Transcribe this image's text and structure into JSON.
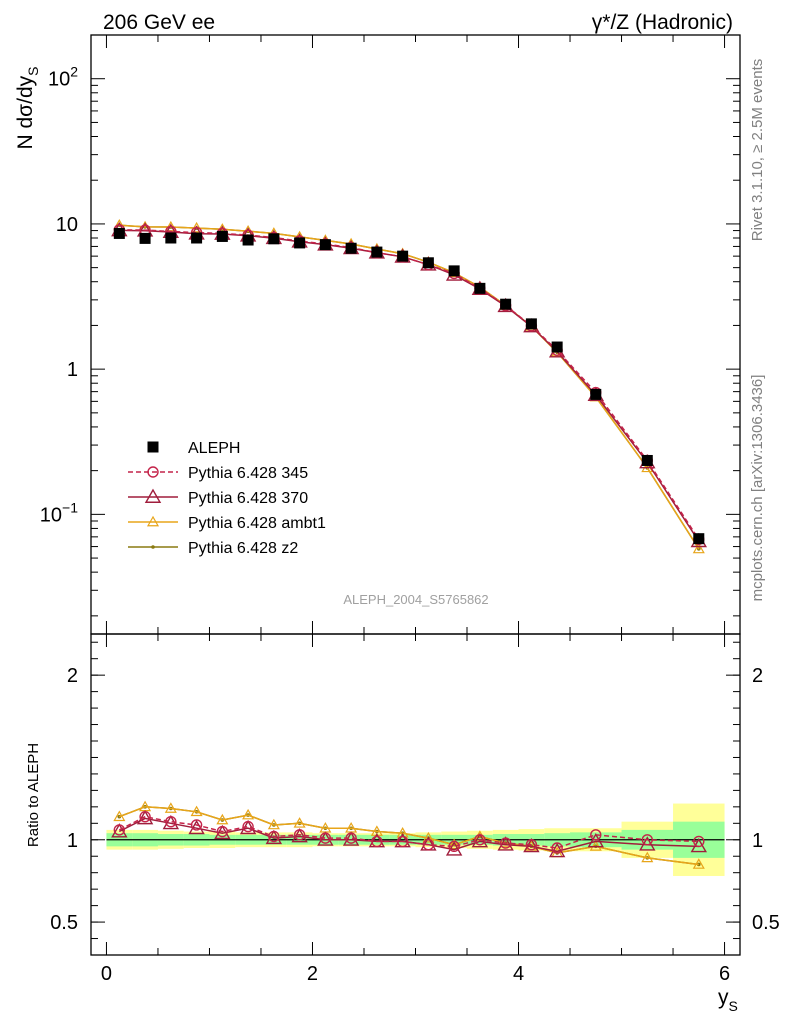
{
  "chart_data": {
    "type": "line",
    "header_left": "206 GeV ee",
    "header_right": "γ*/Z (Hadronic)",
    "ylabel_main": "N dσ/dy",
    "ylabel_main_sub": "S",
    "ylabel_ratio": "Ratio to ALEPH",
    "xlabel": "y",
    "xlabel_sub": "S",
    "analysis_id": "ALEPH_2004_S5765862",
    "side_text_top": "Rivet 3.1.10, ≥ 2.5M events",
    "side_text_bottom": "mcplots.cern.ch [arXiv:1306.3436]",
    "xlim": [
      -0.15,
      6.15
    ],
    "ylim_main": [
      0.015,
      200
    ],
    "ylim_ratio": [
      0.3,
      2.25
    ],
    "log_y_main": true,
    "x_ticks": [
      0,
      2,
      4,
      6
    ],
    "y_ticks_main": [
      {
        "value": 100,
        "base": "10",
        "exp": "2"
      },
      {
        "value": 10,
        "base": "10",
        "exp": ""
      },
      {
        "value": 1,
        "base": "1",
        "exp": ""
      },
      {
        "value": 0.1,
        "base": "10",
        "exp": "−1"
      }
    ],
    "y_ticks_ratio": [
      {
        "value": 2,
        "label": "2"
      },
      {
        "value": 1,
        "label": "1"
      },
      {
        "value": 0.5,
        "label": "0.5"
      }
    ],
    "legend_position": "lower-left",
    "x": [
      0.125,
      0.375,
      0.625,
      0.875,
      1.125,
      1.375,
      1.625,
      1.875,
      2.125,
      2.375,
      2.625,
      2.875,
      3.125,
      3.375,
      3.625,
      3.875,
      4.125,
      4.375,
      4.75,
      5.25,
      5.75
    ],
    "data": {
      "name": "ALEPH",
      "color": "#000000",
      "values": [
        8.6,
        7.95,
        8.0,
        8.0,
        8.2,
        7.75,
        7.9,
        7.4,
        7.2,
        6.8,
        6.4,
        6.0,
        5.4,
        4.75,
        3.6,
        2.8,
        2.05,
        1.42,
        0.67,
        0.235,
        0.068
      ],
      "bins": [
        {
          "lo": 0.0,
          "hi": 0.25,
          "stat": 0.04,
          "tot": 0.06
        },
        {
          "lo": 0.25,
          "hi": 0.5,
          "stat": 0.04,
          "tot": 0.06
        },
        {
          "lo": 0.5,
          "hi": 0.75,
          "stat": 0.035,
          "tot": 0.055
        },
        {
          "lo": 0.75,
          "hi": 1.0,
          "stat": 0.035,
          "tot": 0.05
        },
        {
          "lo": 1.0,
          "hi": 1.25,
          "stat": 0.03,
          "tot": 0.05
        },
        {
          "lo": 1.25,
          "hi": 1.5,
          "stat": 0.03,
          "tot": 0.045
        },
        {
          "lo": 1.5,
          "hi": 1.75,
          "stat": 0.03,
          "tot": 0.045
        },
        {
          "lo": 1.75,
          "hi": 2.0,
          "stat": 0.03,
          "tot": 0.045
        },
        {
          "lo": 2.0,
          "hi": 2.25,
          "stat": 0.03,
          "tot": 0.04
        },
        {
          "lo": 2.25,
          "hi": 2.5,
          "stat": 0.03,
          "tot": 0.04
        },
        {
          "lo": 2.5,
          "hi": 2.75,
          "stat": 0.03,
          "tot": 0.04
        },
        {
          "lo": 2.75,
          "hi": 3.0,
          "stat": 0.03,
          "tot": 0.04
        },
        {
          "lo": 3.0,
          "hi": 3.25,
          "stat": 0.03,
          "tot": 0.045
        },
        {
          "lo": 3.25,
          "hi": 3.5,
          "stat": 0.03,
          "tot": 0.05
        },
        {
          "lo": 3.5,
          "hi": 3.75,
          "stat": 0.03,
          "tot": 0.055
        },
        {
          "lo": 3.75,
          "hi": 4.0,
          "stat": 0.035,
          "tot": 0.06
        },
        {
          "lo": 4.0,
          "hi": 4.25,
          "stat": 0.035,
          "tot": 0.065
        },
        {
          "lo": 4.25,
          "hi": 4.5,
          "stat": 0.04,
          "tot": 0.07
        },
        {
          "lo": 4.5,
          "hi": 5.0,
          "stat": 0.045,
          "tot": 0.07
        },
        {
          "lo": 5.0,
          "hi": 5.5,
          "stat": 0.06,
          "tot": 0.11
        },
        {
          "lo": 5.5,
          "hi": 6.0,
          "stat": 0.11,
          "tot": 0.22
        }
      ]
    },
    "series": [
      {
        "name": "Pythia 6.428 345",
        "color": "#c4244a",
        "marker": "circle",
        "dashed": true,
        "ratio": [
          1.06,
          1.14,
          1.11,
          1.09,
          1.05,
          1.08,
          1.02,
          1.03,
          1.01,
          1.01,
          0.99,
          0.99,
          0.97,
          0.96,
          1.0,
          0.98,
          0.97,
          0.95,
          1.03,
          1.0,
          0.99
        ]
      },
      {
        "name": "Pythia 6.428 370",
        "color": "#a01d3c",
        "marker": "triangle",
        "dashed": false,
        "ratio": [
          1.05,
          1.13,
          1.1,
          1.07,
          1.04,
          1.07,
          1.01,
          1.02,
          1.0,
          1.0,
          0.99,
          0.99,
          0.97,
          0.94,
          0.99,
          0.97,
          0.96,
          0.93,
          0.99,
          0.97,
          0.96
        ]
      },
      {
        "name": "Pythia 6.428 ambt1",
        "color": "#e8a51a",
        "marker": "triangle-small",
        "dashed": false,
        "ratio": [
          1.14,
          1.2,
          1.19,
          1.17,
          1.12,
          1.15,
          1.09,
          1.1,
          1.07,
          1.07,
          1.05,
          1.04,
          1.01,
          0.97,
          1.02,
          0.98,
          0.96,
          0.92,
          0.96,
          0.89,
          0.85
        ]
      },
      {
        "name": "Pythia 6.428 z2",
        "color": "#8a7a10",
        "marker": "dot",
        "dashed": false,
        "ratio": [
          1.14,
          1.2,
          1.19,
          1.17,
          1.12,
          1.15,
          1.09,
          1.1,
          1.07,
          1.07,
          1.05,
          1.04,
          1.01,
          0.97,
          1.02,
          0.98,
          0.96,
          0.92,
          0.96,
          0.89,
          0.85
        ]
      }
    ]
  }
}
